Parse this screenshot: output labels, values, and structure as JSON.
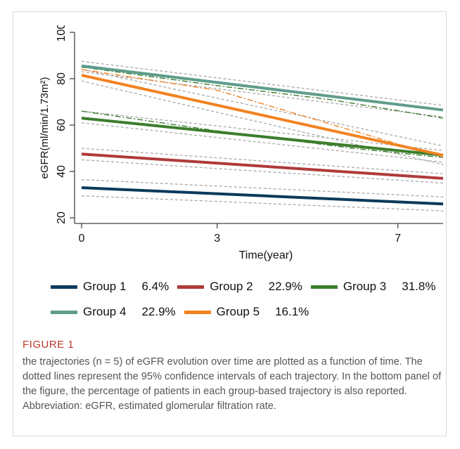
{
  "chart_data": {
    "type": "line",
    "xlabel": "Time(year)",
    "ylabel": "eGFR(ml/min/1.73m²)",
    "xlim": [
      0,
      8
    ],
    "ylim": [
      20,
      100
    ],
    "xticks": [
      0,
      3,
      7
    ],
    "yticks": [
      20,
      40,
      60,
      80,
      100
    ],
    "grid": false,
    "legend_position": "bottom",
    "series": [
      {
        "name": "Group 1",
        "percent": "6.4%",
        "color": "#0b3a5c",
        "x": [
          0,
          8
        ],
        "y": [
          33,
          26
        ],
        "ci_upper": [
          36.5,
          29
        ],
        "ci_lower": [
          29.5,
          23
        ]
      },
      {
        "name": "Group 2",
        "percent": "22.9%",
        "color": "#b03a3a",
        "x": [
          0,
          8
        ],
        "y": [
          47.5,
          37
        ],
        "ci_upper": [
          50,
          39
        ],
        "ci_lower": [
          45,
          35
        ]
      },
      {
        "name": "Group 3",
        "percent": "31.8%",
        "color": "#3c7d2c",
        "x": [
          0,
          8
        ],
        "y": [
          63,
          47
        ],
        "ci_upper": [
          66,
          49
        ],
        "ci_lower": [
          61,
          44
        ]
      },
      {
        "name": "Group 4",
        "percent": "22.9%",
        "color": "#5f9c8c",
        "x": [
          0,
          8
        ],
        "y": [
          85.5,
          66.5
        ],
        "ci_upper": [
          87.5,
          68.5
        ],
        "ci_lower": [
          83,
          63.5
        ]
      },
      {
        "name": "Group 5",
        "percent": "16.1%",
        "color": "#f28220",
        "x": [
          0,
          8
        ],
        "y": [
          81.5,
          47
        ],
        "ci_upper": [
          84,
          51
        ],
        "ci_lower": [
          79,
          43
        ]
      }
    ],
    "observed_lines": [
      {
        "color": "#3c7d2c",
        "x": [
          0,
          3,
          6,
          8
        ],
        "y": [
          66,
          57.5,
          50,
          46
        ]
      },
      {
        "color": "#3c7d2c",
        "x": [
          0,
          3,
          5.5,
          8
        ],
        "y": [
          85,
          77,
          71,
          63
        ]
      },
      {
        "color": "#f28220",
        "x": [
          0,
          3,
          8
        ],
        "y": [
          84,
          75,
          46
        ]
      }
    ]
  },
  "legend": {
    "rows": [
      [
        0,
        1,
        2
      ],
      [
        3,
        4
      ]
    ]
  },
  "figure": {
    "label": "FIGURE 1",
    "caption": "the trajectories (n = 5) of eGFR evolution over time are plotted as a function of time. The dotted lines represent the 95% confidence intervals of each trajectory. In the bottom panel of the figure, the percentage of patients in each group-based trajectory is also reported. Abbreviation: eGFR, estimated glomerular filtration rate."
  }
}
